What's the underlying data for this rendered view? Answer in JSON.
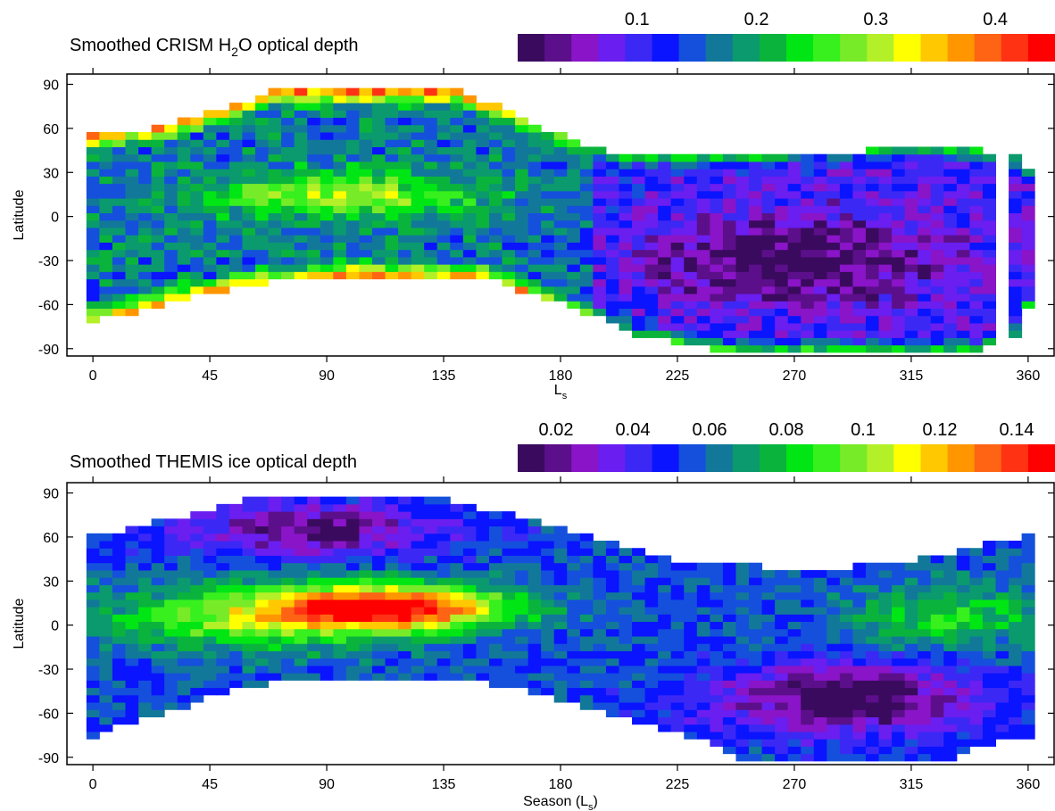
{
  "chart_data": [
    {
      "type": "heatmap",
      "title": "Smoothed CRISM H2O optical depth",
      "title_parts": [
        "Smoothed CRISM H",
        "2",
        "O optical depth"
      ],
      "xlabel": "L",
      "xlabel_sub": "s",
      "ylabel": "Latitude",
      "xlim": [
        -10,
        370
      ],
      "ylim": [
        -95,
        97
      ],
      "xticks": [
        0,
        45,
        90,
        135,
        180,
        225,
        270,
        315,
        360
      ],
      "yticks": [
        -90,
        -60,
        -30,
        0,
        30,
        60,
        90
      ],
      "colorbar": {
        "min": 0.0,
        "max": 0.45,
        "bins": 20,
        "ticks": [
          "0.1",
          "0.2",
          "0.3",
          "0.4"
        ],
        "tick_values": [
          0.1,
          0.2,
          0.3,
          0.4
        ]
      },
      "coverage": "Seasonal band: southern edge near -70 at Ls 0 rising to -40 by Ls 90-150 and falling to -90 near Ls 240-340; northern edge near 55 at Ls 0, ~85 at Ls 60-140, ~40 from Ls 190 to 360.",
      "description_of_values": "Blue-green (~0.15-0.25) with green/yellow band at 0-30N for Ls 30-150; red/yellow (>0.35) along edges; purple (~0.05) in south for Ls 200-320; darkest (~0.02) near -30 around Ls 230-300."
    },
    {
      "type": "heatmap",
      "title": "Smoothed THEMIS ice optical depth",
      "xlabel": "Season (L",
      "xlabel_sub": "s",
      "xlabel_end": ")",
      "ylabel": "Latitude",
      "xlim": [
        -10,
        370
      ],
      "ylim": [
        -95,
        97
      ],
      "xticks": [
        0,
        45,
        90,
        135,
        180,
        225,
        270,
        315,
        360
      ],
      "yticks": [
        -90,
        -60,
        -30,
        0,
        30,
        60,
        90
      ],
      "colorbar": {
        "min": 0.01,
        "max": 0.15,
        "bins": 20,
        "ticks": [
          "0.02",
          "0.04",
          "0.06",
          "0.08",
          "0.1",
          "0.12",
          "0.14"
        ],
        "tick_values": [
          0.02,
          0.04,
          0.06,
          0.08,
          0.1,
          0.12,
          0.14
        ]
      },
      "coverage": "Band from about -70..60 at Ls 0, -30..90 near Ls 60-160, -90..40 around Ls 240-340, -75..60 at Ls 355.",
      "description_of_values": "Aphelion cloud belt (0.12-0.15, red) at 0-25N for Ls 75-150 surrounded by yellow/green (0.08-0.11); blue (~0.05) elsewhere; dark purple (~0.015) at 30-80N for Ls 40-120 and at -30..-80 for Ls 240-340."
    }
  ]
}
